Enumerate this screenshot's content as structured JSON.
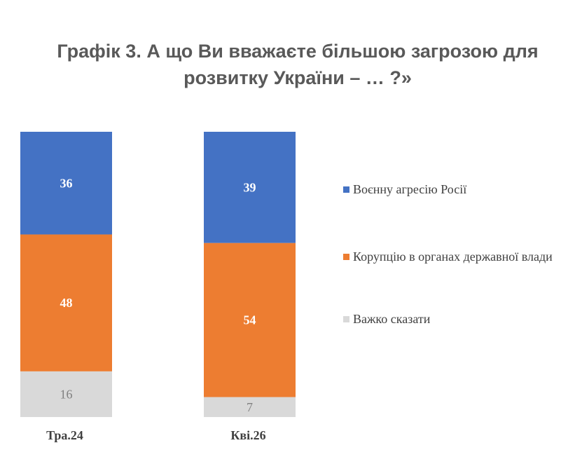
{
  "title": {
    "line1": "Графік 3. А що Ви вважаєте більшою загрозою для",
    "line2": "розвитку України – … ?»"
  },
  "chart_data": {
    "type": "bar",
    "stacked": true,
    "categories": [
      "Тра.24",
      "Кві.26"
    ],
    "series": [
      {
        "name": "Воєнну агресію Росії",
        "values": [
          36,
          39
        ],
        "color": "#4472C4",
        "label_color": "#ffffff"
      },
      {
        "name": "Корупцію в органах державної влади",
        "values": [
          48,
          54
        ],
        "color": "#ED7D31",
        "label_color": "#ffffff"
      },
      {
        "name": "Важко сказати",
        "values": [
          16,
          7
        ],
        "color": "#D9D9D9",
        "label_color": "#7f7f7f"
      }
    ],
    "legend_position": "right",
    "grid": false
  }
}
